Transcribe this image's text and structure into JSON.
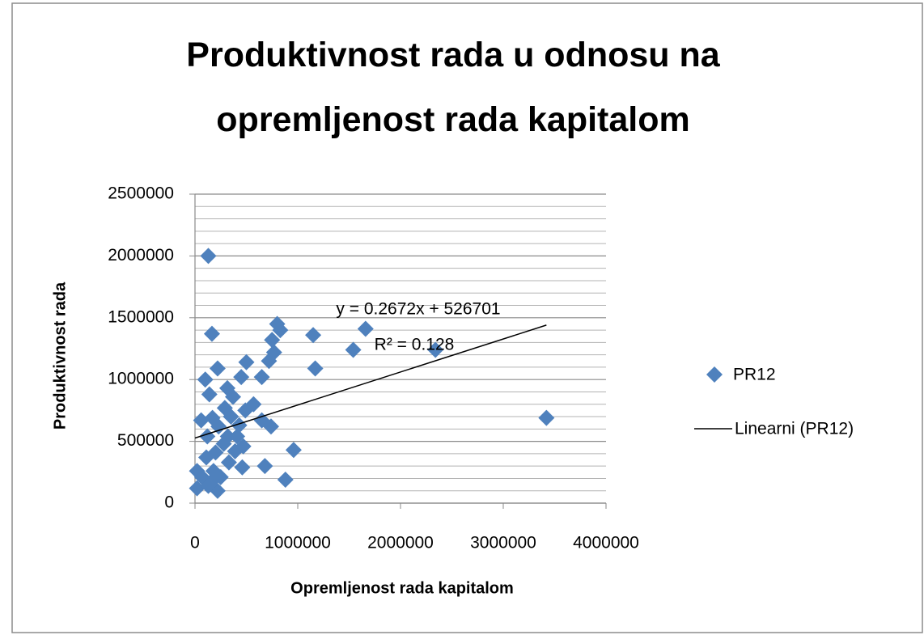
{
  "chart_data": {
    "type": "scatter",
    "title": "Produktivnost rada u odnosu na opremljenost rada kapitalom",
    "xlabel": "Opremljenost rada kapitalom",
    "ylabel": "Produktivnost rada",
    "xlim": [
      0,
      4000000
    ],
    "ylim": [
      0,
      2500000
    ],
    "xticks": [
      0,
      1000000,
      2000000,
      3000000,
      4000000
    ],
    "yticks": [
      0,
      500000,
      1000000,
      1500000,
      2000000,
      2500000
    ],
    "yminorticks": [
      100000,
      200000,
      300000,
      400000,
      600000,
      700000,
      800000,
      900000,
      1100000,
      1200000,
      1300000,
      1400000,
      1600000,
      1700000,
      1800000,
      1900000,
      2100000,
      2200000,
      2300000,
      2400000
    ],
    "grid": true,
    "legend": "right",
    "series": [
      {
        "name": "PR12",
        "color": "#4f81bd",
        "x": [
          130000,
          165000,
          800000,
          830000,
          1150000,
          1540000,
          1660000,
          2340000,
          3420000,
          750000,
          770000,
          1170000,
          220000,
          100000,
          140000,
          650000,
          500000,
          720000,
          450000,
          315000,
          570000,
          490000,
          650000,
          740000,
          960000,
          680000,
          880000,
          460000,
          470000,
          220000,
          20000,
          20000,
          60000,
          170000,
          290000,
          350000,
          320000,
          410000,
          390000,
          330000,
          200000,
          120000,
          110000,
          180000,
          70000,
          250000,
          280000,
          230000,
          430000,
          370000,
          200000,
          130000
        ],
        "values": [
          2000000,
          1370000,
          1450000,
          1400000,
          1360000,
          1240000,
          1410000,
          1240000,
          690000,
          1320000,
          1220000,
          1090000,
          1090000,
          1000000,
          880000,
          1020000,
          1140000,
          1150000,
          1020000,
          930000,
          800000,
          750000,
          670000,
          620000,
          430000,
          300000,
          190000,
          290000,
          460000,
          100000,
          120000,
          260000,
          670000,
          690000,
          770000,
          700000,
          540000,
          540000,
          420000,
          330000,
          410000,
          540000,
          370000,
          260000,
          210000,
          210000,
          480000,
          620000,
          630000,
          860000,
          210000,
          140000
        ]
      }
    ],
    "trendline": {
      "name": "Linearni (PR12)",
      "color": "#000000",
      "slope": 0.2672,
      "intercept": 526701,
      "x_range": [
        0,
        3420000
      ],
      "equation": "y = 0.2672x + 526701",
      "r_squared": "R² = 0.128"
    }
  }
}
